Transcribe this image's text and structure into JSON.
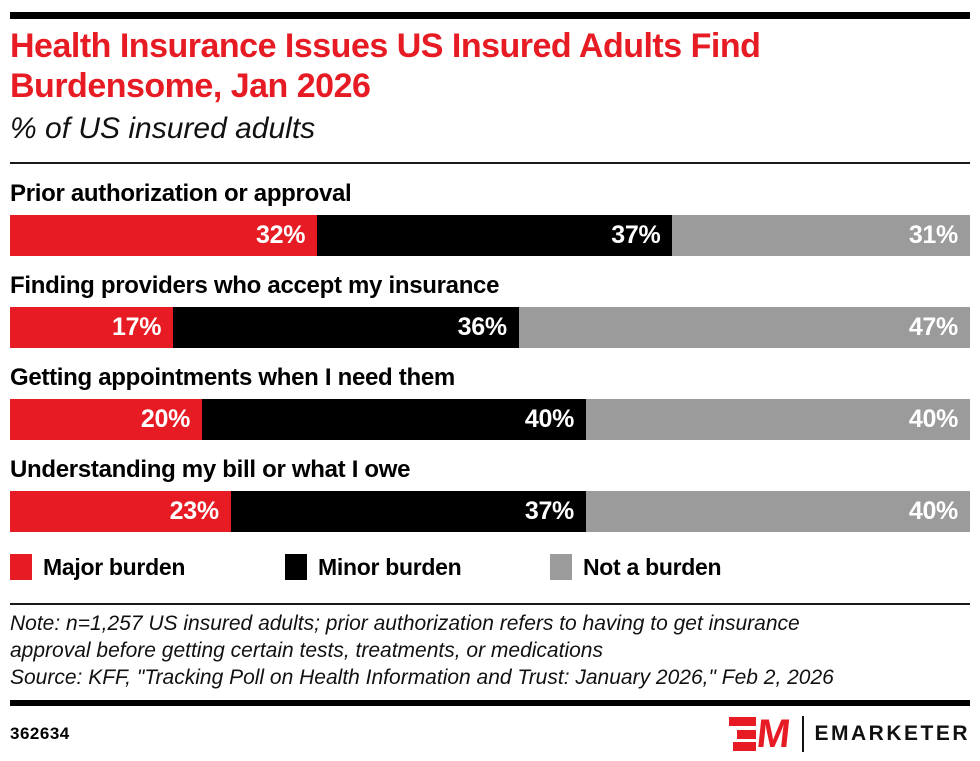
{
  "colors": {
    "red": "#E61B23",
    "black": "#000000",
    "gray": "#9B9B9B",
    "title_red": "#E61B23"
  },
  "header": {
    "title_lines": [
      "Health Insurance Issues US Insured Adults Find",
      "Burdensome, Jan 2026"
    ],
    "title": "Health Insurance Issues US Insured Adults Find Burdensome, Jan 2026",
    "subtitle": "% of US insured adults"
  },
  "chart_data": {
    "type": "bar",
    "stacked": true,
    "orientation": "horizontal",
    "title": "Health Insurance Issues US Insured Adults Find Burdensome, Jan 2026",
    "subtitle": "% of US insured adults",
    "categories": [
      "Prior authorization or approval",
      "Finding providers who accept my insurance",
      "Getting appointments when I need them",
      "Understanding my bill or what I owe"
    ],
    "series": [
      {
        "name": "Major burden",
        "color_key": "red",
        "values": [
          32,
          17,
          20,
          23
        ]
      },
      {
        "name": "Minor burden",
        "color_key": "black",
        "values": [
          37,
          36,
          40,
          37
        ]
      },
      {
        "name": "Not a burden",
        "color_key": "gray",
        "values": [
          31,
          47,
          40,
          40
        ]
      }
    ],
    "value_suffix": "%",
    "xlim": [
      0,
      100
    ],
    "legend_position": "bottom",
    "grid": false
  },
  "footnote": {
    "note_lines": [
      "Note: n=1,257 US insured adults; prior authorization refers to having to get insurance",
      "approval before getting certain tests, treatments, or medications"
    ],
    "source": "Source: KFF, \"Tracking Poll on Health Information and Trust: January 2026,\" Feb 2, 2026"
  },
  "footer": {
    "chart_id": "362634",
    "brand": "EMARKETER"
  }
}
